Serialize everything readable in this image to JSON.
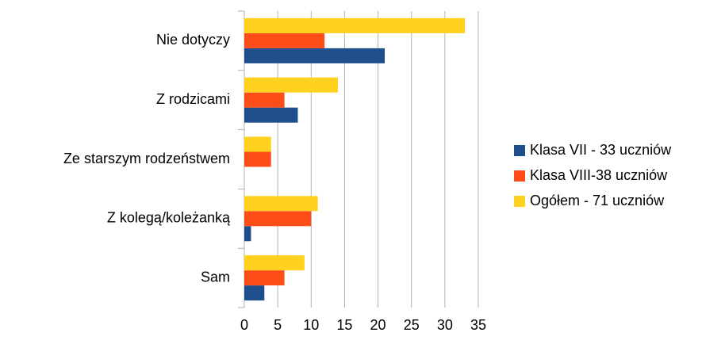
{
  "chart_data": {
    "type": "bar",
    "orientation": "horizontal",
    "categories": [
      "Nie dotyczy",
      "Z rodzicami",
      "Ze starszym rodzeństwem",
      "Z kolegą/koleżanką",
      "Sam"
    ],
    "series": [
      {
        "name": "Klasa VII - 33 uczniów",
        "color": "#1f4e8c",
        "values": [
          21,
          8,
          0,
          1,
          3
        ]
      },
      {
        "name": "Klasa VIII-38 uczniów",
        "color": "#ff4d1a",
        "values": [
          12,
          6,
          4,
          10,
          6
        ]
      },
      {
        "name": "Ogółem - 71 uczniów",
        "color": "#ffd21f",
        "values": [
          33,
          14,
          4,
          11,
          9
        ]
      }
    ],
    "xlim": [
      0,
      35
    ],
    "xticks": [
      0,
      5,
      10,
      15,
      20,
      25,
      30,
      35
    ],
    "grid": true,
    "legend": "right"
  }
}
